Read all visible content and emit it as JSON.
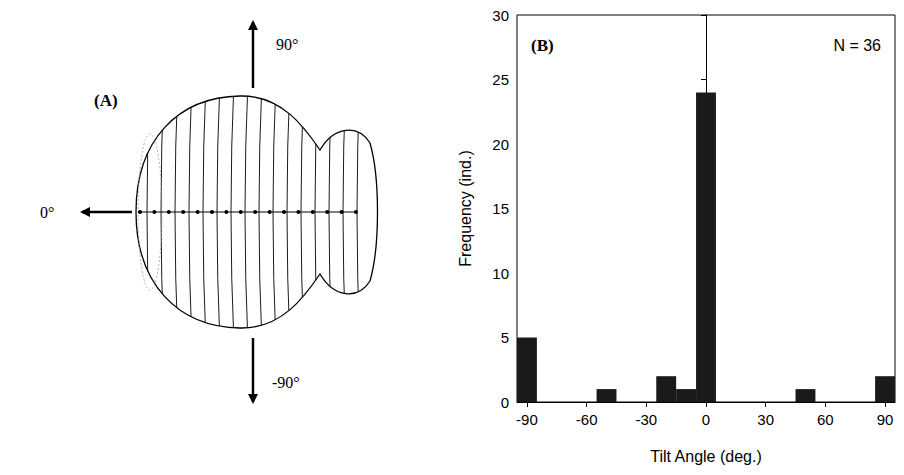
{
  "diagram": {
    "panel_label": "(A)",
    "arrows": {
      "up": "90°",
      "left": "0°",
      "down": "-90°"
    }
  },
  "chart_data": {
    "type": "histogram",
    "panel_label": "(B)",
    "annotations": [
      "N = 36"
    ],
    "x_label": "Tilt Angle (deg.)",
    "y_label": "Frequency (ind.)",
    "bins": [
      -95,
      -85,
      -75,
      -65,
      -55,
      -45,
      -35,
      -25,
      -15,
      -5,
      5,
      15,
      25,
      35,
      45,
      55,
      65,
      75,
      85,
      95
    ],
    "values": [
      5,
      0,
      0,
      0,
      1,
      0,
      0,
      2,
      1,
      24,
      0,
      0,
      0,
      0,
      1,
      0,
      0,
      0,
      2
    ],
    "color": "#1a1a1a",
    "xlim": [
      -95,
      95
    ],
    "xticks": [
      -90,
      -60,
      -30,
      0,
      30,
      60,
      90
    ],
    "ylim": [
      0,
      30
    ],
    "yticks": [
      0,
      5,
      10,
      15,
      20,
      25,
      30
    ],
    "grid": false
  }
}
